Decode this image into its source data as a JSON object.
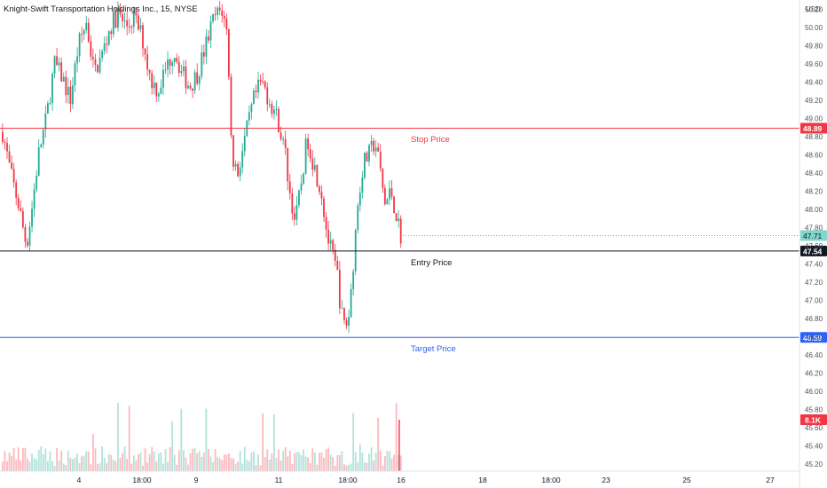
{
  "header": {
    "title": "Knight-Swift Transportation Holdings Inc., 15, NYSE"
  },
  "chart_data": {
    "type": "candlestick",
    "currency": "USD",
    "y_ticks": [
      45.2,
      45.4,
      45.6,
      45.8,
      46.0,
      46.2,
      46.4,
      46.6,
      46.8,
      47.0,
      47.2,
      47.4,
      47.6,
      47.8,
      48.0,
      48.2,
      48.4,
      48.6,
      48.8,
      49.0,
      49.2,
      49.4,
      49.6,
      49.8,
      50.0,
      50.2
    ],
    "y_range": [
      45.12,
      50.3
    ],
    "x_ticks": [
      "4",
      "18:00",
      "9",
      "11",
      "18:00",
      "16",
      "18",
      "18:00",
      "23",
      "25",
      "27"
    ],
    "price_lines": [
      {
        "name": "Stop Price",
        "value": 48.89,
        "value_label": "48.89",
        "color": "#f23645"
      },
      {
        "name": "Entry Price",
        "value": 47.54,
        "value_label": "47.54",
        "color": "#131722"
      },
      {
        "name": "Target Price",
        "value": 46.59,
        "value_label": "46.59",
        "color": "#2962ff"
      }
    ],
    "last_price": {
      "value": 47.71,
      "label": "47.71",
      "color": "#22ab94"
    },
    "volume": {
      "last_label": "8.1K",
      "color": "#f23645"
    },
    "colors": {
      "up": "#22ab94",
      "down": "#f23645"
    },
    "close_path": [
      {
        "x": 0,
        "y": 48.85
      },
      {
        "x": 0.02,
        "y": 48.4
      },
      {
        "x": 0.04,
        "y": 48.05
      },
      {
        "x": 0.06,
        "y": 47.6
      },
      {
        "x": 0.075,
        "y": 48.05
      },
      {
        "x": 0.09,
        "y": 48.6
      },
      {
        "x": 0.11,
        "y": 49.0
      },
      {
        "x": 0.13,
        "y": 49.6
      },
      {
        "x": 0.15,
        "y": 49.45
      },
      {
        "x": 0.17,
        "y": 49.2
      },
      {
        "x": 0.19,
        "y": 49.8
      },
      {
        "x": 0.21,
        "y": 50.05
      },
      {
        "x": 0.23,
        "y": 49.5
      },
      {
        "x": 0.25,
        "y": 49.7
      },
      {
        "x": 0.27,
        "y": 50.0
      },
      {
        "x": 0.29,
        "y": 50.15
      },
      {
        "x": 0.31,
        "y": 50.0
      },
      {
        "x": 0.33,
        "y": 50.1
      },
      {
        "x": 0.35,
        "y": 49.9
      },
      {
        "x": 0.37,
        "y": 49.45
      },
      {
        "x": 0.39,
        "y": 49.3
      },
      {
        "x": 0.41,
        "y": 49.55
      },
      {
        "x": 0.43,
        "y": 49.75
      },
      {
        "x": 0.45,
        "y": 49.5
      },
      {
        "x": 0.47,
        "y": 49.35
      },
      {
        "x": 0.49,
        "y": 49.5
      },
      {
        "x": 0.51,
        "y": 49.8
      },
      {
        "x": 0.53,
        "y": 50.1
      },
      {
        "x": 0.55,
        "y": 50.2
      },
      {
        "x": 0.565,
        "y": 49.9
      },
      {
        "x": 0.575,
        "y": 48.6
      },
      {
        "x": 0.59,
        "y": 48.4
      },
      {
        "x": 0.61,
        "y": 48.8
      },
      {
        "x": 0.63,
        "y": 49.2
      },
      {
        "x": 0.65,
        "y": 49.4
      },
      {
        "x": 0.67,
        "y": 49.2
      },
      {
        "x": 0.69,
        "y": 49.0
      },
      {
        "x": 0.71,
        "y": 48.6
      },
      {
        "x": 0.72,
        "y": 48.2
      },
      {
        "x": 0.735,
        "y": 47.85
      },
      {
        "x": 0.75,
        "y": 48.3
      },
      {
        "x": 0.765,
        "y": 48.8
      },
      {
        "x": 0.78,
        "y": 48.5
      },
      {
        "x": 0.8,
        "y": 48.2
      },
      {
        "x": 0.815,
        "y": 47.7
      },
      {
        "x": 0.83,
        "y": 47.45
      },
      {
        "x": 0.84,
        "y": 47.3
      },
      {
        "x": 0.85,
        "y": 46.85
      },
      {
        "x": 0.86,
        "y": 46.7
      },
      {
        "x": 0.87,
        "y": 46.85
      },
      {
        "x": 0.88,
        "y": 47.4
      },
      {
        "x": 0.89,
        "y": 48.0
      },
      {
        "x": 0.905,
        "y": 48.5
      },
      {
        "x": 0.92,
        "y": 48.6
      },
      {
        "x": 0.935,
        "y": 48.75
      },
      {
        "x": 0.945,
        "y": 48.5
      },
      {
        "x": 0.96,
        "y": 48.05
      },
      {
        "x": 0.975,
        "y": 48.2
      },
      {
        "x": 0.99,
        "y": 47.9
      },
      {
        "x": 1,
        "y": 47.71
      }
    ]
  }
}
